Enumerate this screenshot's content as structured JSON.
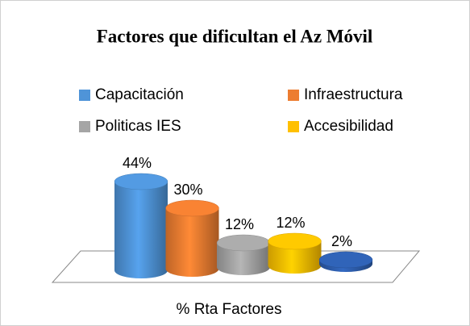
{
  "chart_data": {
    "type": "bar",
    "title": "Factores que dificultan el Az Móvil",
    "categories": [
      "Capacitación",
      "Infraestructura",
      "Politicas IES",
      "Accesibilidad",
      null
    ],
    "values": [
      44,
      30,
      12,
      12,
      2
    ],
    "value_labels": [
      "44%",
      "30%",
      "12%",
      "12%",
      "2%"
    ],
    "colors": [
      "#4f94d8",
      "#ed7d31",
      "#a5a5a5",
      "#ffc000",
      "#2e5fb0"
    ],
    "x_label": "% Rta Factores",
    "legend": "top"
  }
}
